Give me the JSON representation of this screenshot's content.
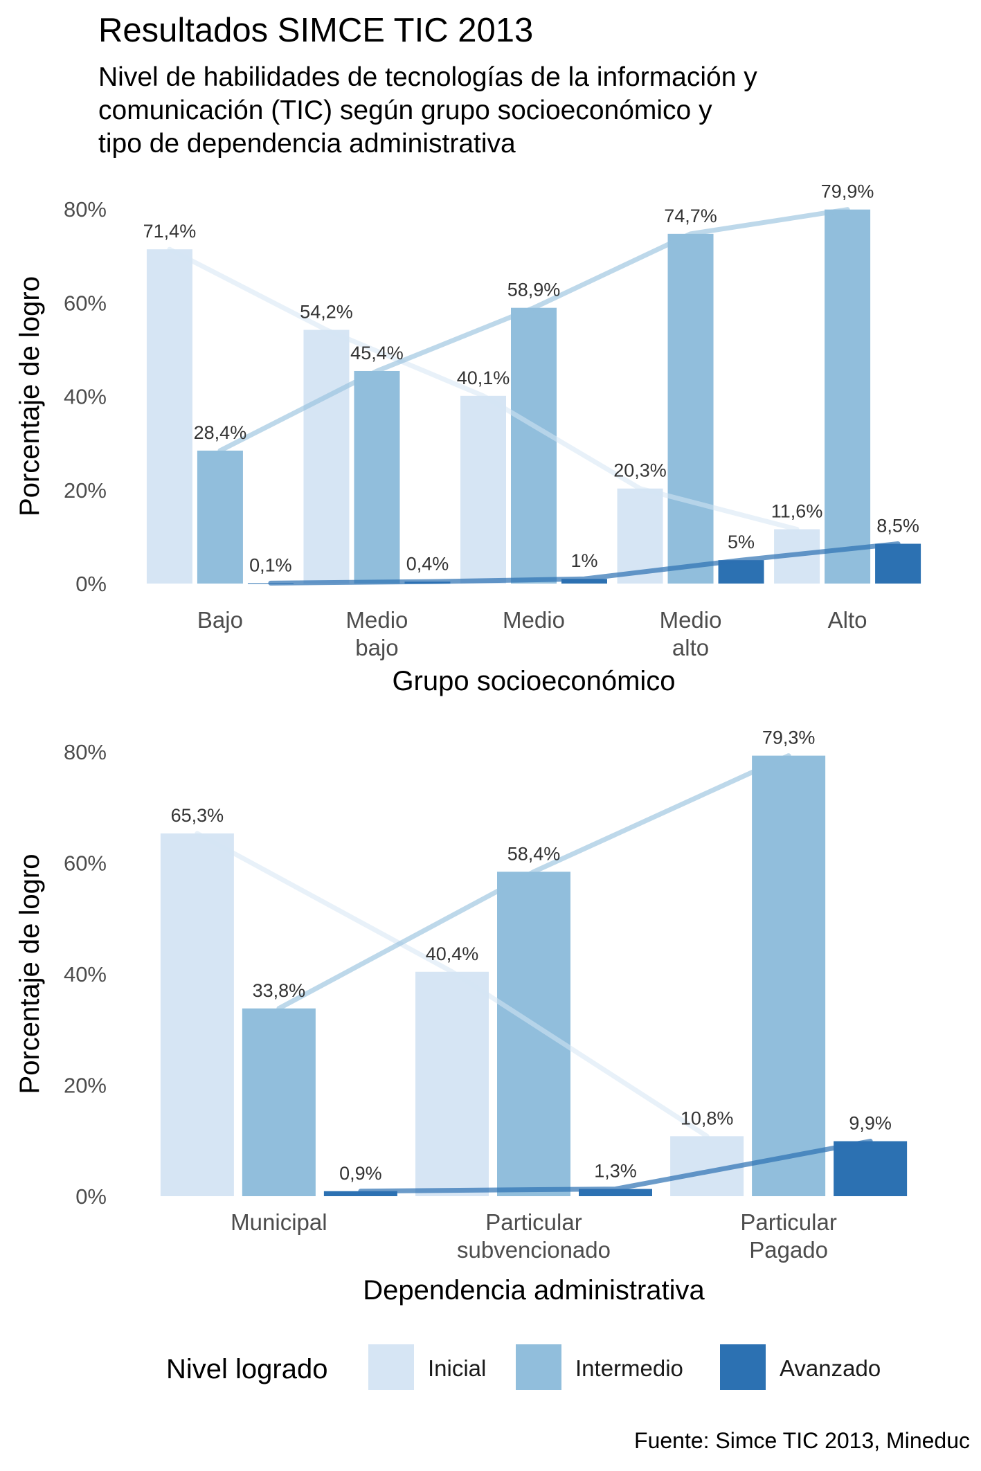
{
  "title": "Resultados SIMCE TIC 2013",
  "subtitle_lines": [
    "Nivel de habilidades de tecnologías de la información y",
    "comunicación (TIC) según grupo socioeconómico y",
    "tipo de dependencia administrativa"
  ],
  "caption": "Fuente: Simce TIC 2013, Mineduc",
  "legend": {
    "title": "Nivel logrado",
    "items": [
      {
        "label": "Inicial",
        "color": "#d6e5f4"
      },
      {
        "label": "Intermedio",
        "color": "#91bedc"
      },
      {
        "label": "Avanzado",
        "color": "#2c71b2"
      }
    ]
  },
  "chart_data": [
    {
      "type": "bar",
      "xlabel": "Grupo socioeconómico",
      "ylabel": "Porcentaje de logro",
      "ylim": [
        0,
        80
      ],
      "yticks": [
        "0%",
        "20%",
        "40%",
        "60%",
        "80%"
      ],
      "categories": [
        [
          "Bajo"
        ],
        [
          "Medio",
          "bajo"
        ],
        [
          "Medio"
        ],
        [
          "Medio",
          "alto"
        ],
        [
          "Alto"
        ]
      ],
      "series": [
        {
          "name": "Inicial",
          "values": [
            71.4,
            54.2,
            40.1,
            20.3,
            11.6
          ],
          "labels": [
            "71,4%",
            "54,2%",
            "40,1%",
            "20,3%",
            "11,6%"
          ]
        },
        {
          "name": "Intermedio",
          "values": [
            28.4,
            45.4,
            58.9,
            74.7,
            79.9
          ],
          "labels": [
            "28,4%",
            "45,4%",
            "58,9%",
            "74,7%",
            "79,9%"
          ]
        },
        {
          "name": "Avanzado",
          "values": [
            0.1,
            0.4,
            1,
            5,
            8.5
          ],
          "labels": [
            "0,1%",
            "0,4%",
            "1%",
            "5%",
            "8,5%"
          ]
        }
      ],
      "trend_lines": true,
      "grid": false
    },
    {
      "type": "bar",
      "xlabel": "Dependencia administrativa",
      "ylabel": "Porcentaje de logro",
      "ylim": [
        0,
        80
      ],
      "yticks": [
        "0%",
        "20%",
        "40%",
        "60%",
        "80%"
      ],
      "categories": [
        [
          "Municipal"
        ],
        [
          "Particular",
          "subvencionado"
        ],
        [
          "Particular",
          "Pagado"
        ]
      ],
      "series": [
        {
          "name": "Inicial",
          "values": [
            65.3,
            40.4,
            10.8
          ],
          "labels": [
            "65,3%",
            "40,4%",
            "10,8%"
          ]
        },
        {
          "name": "Intermedio",
          "values": [
            33.8,
            58.4,
            79.3
          ],
          "labels": [
            "33,8%",
            "58,4%",
            "79,3%"
          ]
        },
        {
          "name": "Avanzado",
          "values": [
            0.9,
            1.3,
            9.9
          ],
          "labels": [
            "0,9%",
            "1,3%",
            "9,9%"
          ]
        }
      ],
      "trend_lines": true,
      "grid": false
    }
  ]
}
